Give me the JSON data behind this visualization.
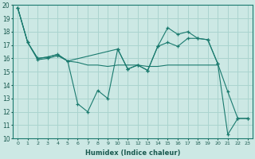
{
  "xlabel": "Humidex (Indice chaleur)",
  "background_color": "#cce8e4",
  "grid_color": "#aad4cf",
  "line_color": "#1a7a6e",
  "xlim": [
    -0.5,
    23.5
  ],
  "ylim": [
    10,
    20
  ],
  "xticks": [
    0,
    1,
    2,
    3,
    4,
    5,
    6,
    7,
    8,
    9,
    10,
    11,
    12,
    13,
    14,
    15,
    16,
    17,
    18,
    19,
    20,
    21,
    22,
    23
  ],
  "yticks": [
    10,
    11,
    12,
    13,
    14,
    15,
    16,
    17,
    18,
    19,
    20
  ],
  "curve1_x": [
    0,
    1,
    2,
    3,
    4,
    5,
    6,
    7,
    8,
    9,
    10,
    11,
    12,
    13,
    14,
    15,
    16,
    17,
    18,
    19,
    20,
    21,
    22,
    23
  ],
  "curve1_y": [
    19.8,
    17.2,
    15.9,
    16.0,
    16.2,
    15.8,
    12.6,
    12.0,
    13.6,
    13.0,
    16.7,
    15.2,
    15.5,
    15.1,
    16.9,
    18.3,
    17.8,
    18.0,
    17.5,
    17.4,
    15.6,
    10.3,
    11.5,
    11.5
  ],
  "curve2_x": [
    0,
    1,
    2,
    3,
    4,
    5,
    6,
    7,
    8,
    9,
    10,
    11,
    12,
    13,
    14,
    15,
    16,
    17,
    18,
    19,
    20
  ],
  "curve2_y": [
    19.8,
    17.2,
    16.0,
    16.1,
    16.3,
    15.8,
    15.7,
    15.5,
    15.5,
    15.4,
    15.5,
    15.5,
    15.5,
    15.4,
    15.4,
    15.5,
    15.5,
    15.5,
    15.5,
    15.5,
    15.5
  ],
  "curve3_x": [
    0,
    1,
    2,
    3,
    4,
    5,
    10,
    11,
    12,
    13,
    14,
    15,
    16,
    17,
    18,
    19,
    20,
    21,
    22,
    23
  ],
  "curve3_y": [
    19.8,
    17.2,
    16.0,
    16.1,
    16.3,
    15.8,
    16.7,
    15.2,
    15.5,
    15.1,
    16.9,
    17.2,
    16.9,
    17.5,
    17.5,
    17.4,
    15.6,
    13.5,
    11.5,
    11.5
  ]
}
